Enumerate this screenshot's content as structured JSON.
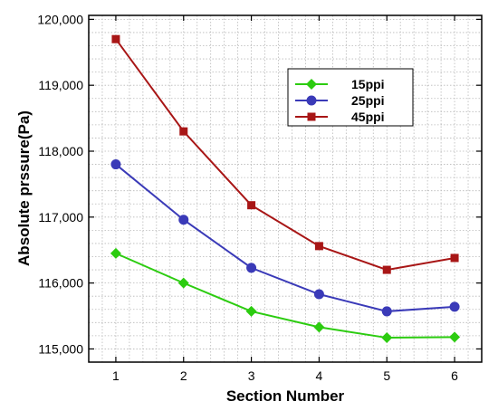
{
  "chart_data": {
    "type": "line",
    "xlabel": "Section Number",
    "ylabel": "Absolute prssure(Pa)",
    "x": [
      1,
      2,
      3,
      4,
      5,
      6
    ],
    "xlim": [
      0.6,
      6.4
    ],
    "ylim": [
      114800,
      120060
    ],
    "xticks": [
      1,
      2,
      3,
      4,
      5,
      6
    ],
    "yticks": [
      115000,
      116000,
      117000,
      118000,
      119000,
      120000
    ],
    "ytick_labels": [
      "115,000",
      "116,000",
      "117,000",
      "118,000",
      "119,000",
      "120,000"
    ],
    "grid": true,
    "legend_position": "upper-right",
    "series": [
      {
        "name": "15ppi",
        "color": "#2ccc10",
        "marker": "diamond",
        "values": [
          116450,
          116000,
          115570,
          115330,
          115170,
          115180
        ]
      },
      {
        "name": "25ppi",
        "color": "#3a3ab8",
        "marker": "circle",
        "values": [
          117800,
          116960,
          116230,
          115830,
          115570,
          115640
        ]
      },
      {
        "name": "45ppi",
        "color": "#a81616",
        "marker": "square",
        "values": [
          119700,
          118300,
          117180,
          116560,
          116200,
          116380
        ]
      }
    ]
  }
}
